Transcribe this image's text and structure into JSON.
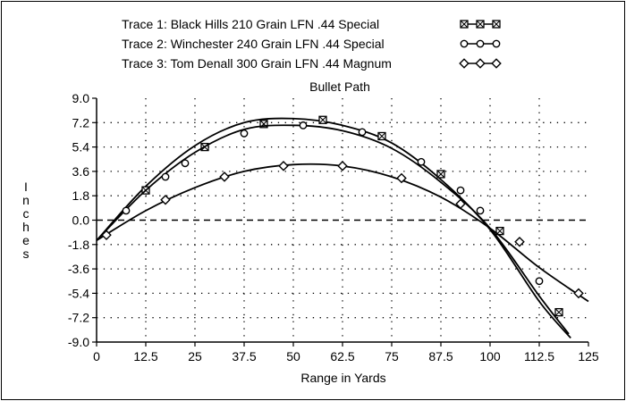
{
  "chart_data": {
    "type": "line",
    "title": "Bullet Path",
    "xlabel": "Range in Yards",
    "ylabel": "Inches",
    "xlim": [
      0,
      125
    ],
    "ylim": [
      -9.0,
      9.0
    ],
    "x_ticks": [
      "0",
      "12.5",
      "25",
      "37.5",
      "50",
      "62.5",
      "75",
      "87.5",
      "100",
      "112.5",
      "125"
    ],
    "y_ticks": [
      "9.0",
      "7.2",
      "5.4",
      "3.6",
      "1.8",
      "0.0",
      "-1.8",
      "-3.6",
      "-5.4",
      "-7.2",
      "-9.0"
    ],
    "grid": "dotted",
    "reference_line": {
      "y": 0,
      "style": "dashed"
    },
    "legend_position": "top",
    "colors": {
      "line": "#000000",
      "background": "#ffffff"
    },
    "series": [
      {
        "name": "Trace 1:  Black Hills 210 Grain LFN .44 Special",
        "marker": "x-square",
        "x": [
          0,
          12.5,
          25,
          37.5,
          50,
          62.5,
          75,
          87.5,
          100,
          112.5,
          120.5
        ],
        "y": [
          -1.5,
          2.5,
          5.5,
          7.2,
          7.5,
          7.0,
          5.7,
          3.0,
          -0.7,
          -6.0,
          -8.7
        ],
        "marker_x": [
          12.5,
          27.5,
          42.5,
          57.5,
          72.5,
          87.5,
          102.5,
          117.5
        ],
        "marker_y": [
          2.2,
          5.4,
          7.1,
          7.4,
          6.2,
          3.4,
          -0.8,
          -6.8
        ]
      },
      {
        "name": "Trace 2:  Winchester 240 Grain LFN .44 Special",
        "marker": "circle",
        "x": [
          0,
          12.5,
          25,
          37.5,
          50,
          62.5,
          75,
          87.5,
          100,
          112.5,
          120
        ],
        "y": [
          -1.5,
          2.2,
          5.0,
          6.7,
          7.0,
          6.6,
          5.3,
          2.8,
          -0.6,
          -5.6,
          -8.4
        ],
        "marker_x": [
          7.5,
          17.5,
          22.5,
          37.5,
          52.5,
          67.5,
          82.5,
          92.5,
          97.5,
          112.5
        ],
        "marker_y": [
          0.7,
          3.2,
          4.2,
          6.4,
          7.0,
          6.5,
          4.3,
          2.2,
          0.7,
          -4.5
        ]
      },
      {
        "name": "Trace 3:  Tom Denall 300 Grain LFN .44 Magnum",
        "marker": "diamond",
        "x": [
          0,
          12.5,
          25,
          37.5,
          50,
          62.5,
          75,
          87.5,
          100,
          112.5,
          125
        ],
        "y": [
          -1.5,
          0.7,
          2.4,
          3.6,
          4.1,
          4.0,
          3.2,
          1.7,
          -0.6,
          -3.5,
          -6.0
        ],
        "marker_x": [
          2.5,
          17.5,
          32.5,
          47.5,
          62.5,
          77.5,
          92.5,
          107.5,
          122.5
        ],
        "marker_y": [
          -1.1,
          1.5,
          3.2,
          4.0,
          4.0,
          3.1,
          1.2,
          -1.6,
          -5.4
        ]
      }
    ]
  }
}
